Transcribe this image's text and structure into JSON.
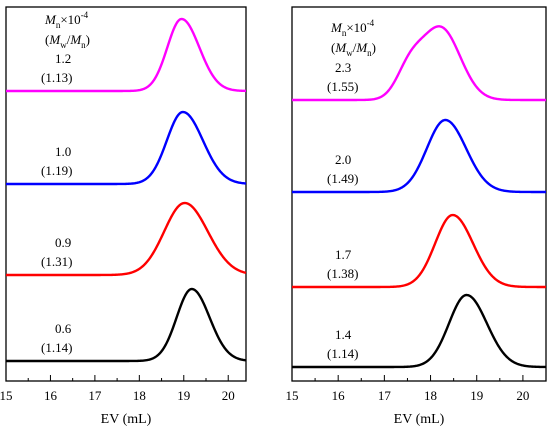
{
  "chart_data": [
    {
      "type": "line",
      "panel": "left",
      "title": "",
      "xlabel": "EV (mL)",
      "ylabel": "",
      "xlim": [
        15,
        20.4
      ],
      "xticks": [
        "15",
        "16",
        "17",
        "18",
        "19",
        "20"
      ],
      "y_axis_values_shown": false,
      "header": {
        "line1": "M_n×10^-4",
        "line2": "(M_w/M_n)"
      },
      "legend": "none",
      "grid": false,
      "series": [
        {
          "mn": "1.2",
          "pdi": "(1.13)",
          "color": "#ff00ff",
          "peak": 18.95,
          "width_left": 0.32,
          "width_right": 0.4,
          "height": 0.9,
          "shoulder": 0
        },
        {
          "mn": "1.0",
          "pdi": "(1.19)",
          "color": "#0000ff",
          "peak": 18.98,
          "width_left": 0.36,
          "width_right": 0.45,
          "height": 0.9,
          "shoulder": 0
        },
        {
          "mn": "0.9",
          "pdi": "(1.31)",
          "color": "#ff0000",
          "peak": 19.02,
          "width_left": 0.46,
          "width_right": 0.52,
          "height": 0.9,
          "shoulder": 0
        },
        {
          "mn": "0.6",
          "pdi": "(1.14)",
          "color": "#000000",
          "peak": 19.18,
          "width_left": 0.34,
          "width_right": 0.4,
          "height": 0.9,
          "shoulder": 0
        }
      ]
    },
    {
      "type": "line",
      "panel": "right",
      "title": "",
      "xlabel": "EV (mL)",
      "ylabel": "",
      "xlim": [
        15,
        20.5
      ],
      "xticks": [
        "15",
        "16",
        "17",
        "18",
        "19",
        "20"
      ],
      "y_axis_values_shown": false,
      "header": {
        "line1": "M_n×10^-4",
        "line2": "(M_w/M_n)"
      },
      "legend": "none",
      "grid": false,
      "series": [
        {
          "mn": "2.3",
          "pdi": "(1.55)",
          "color": "#ff00ff",
          "peak": 18.22,
          "width_left": 0.42,
          "width_right": 0.42,
          "height": 0.9,
          "shoulder": 0.38
        },
        {
          "mn": "2.0",
          "pdi": "(1.49)",
          "color": "#0000ff",
          "peak": 18.32,
          "width_left": 0.4,
          "width_right": 0.45,
          "height": 0.9,
          "shoulder": 0
        },
        {
          "mn": "1.7",
          "pdi": "(1.38)",
          "color": "#ff0000",
          "peak": 18.48,
          "width_left": 0.38,
          "width_right": 0.44,
          "height": 0.9,
          "shoulder": 0
        },
        {
          "mn": "1.4",
          "pdi": "(1.14)",
          "color": "#000000",
          "peak": 18.78,
          "width_left": 0.38,
          "width_right": 0.44,
          "height": 0.9,
          "shoulder": 0
        }
      ]
    }
  ]
}
